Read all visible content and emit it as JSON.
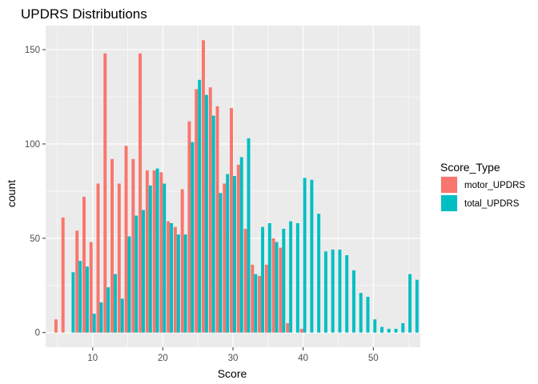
{
  "chart_data": {
    "type": "bar",
    "title": "UPDRS Distributions",
    "xlabel": "Score",
    "ylabel": "count",
    "xlim": [
      3.3,
      56.7
    ],
    "ylim": [
      -7.75,
      162.75
    ],
    "x_ticks": [
      10,
      20,
      30,
      40,
      50
    ],
    "y_ticks": [
      0,
      50,
      100,
      150
    ],
    "grid": true,
    "legend": {
      "title": "Score_Type",
      "position": "right"
    },
    "series": [
      {
        "name": "motor_UPDRS",
        "color": "#F8766D",
        "points": [
          [
            5,
            7
          ],
          [
            6,
            61
          ],
          [
            8,
            54
          ],
          [
            9,
            72
          ],
          [
            10,
            48
          ],
          [
            11,
            79
          ],
          [
            12,
            148
          ],
          [
            13,
            92
          ],
          [
            14,
            79
          ],
          [
            15,
            99
          ],
          [
            16,
            92
          ],
          [
            17,
            148
          ],
          [
            18,
            86
          ],
          [
            19,
            86
          ],
          [
            20,
            85
          ],
          [
            21,
            59
          ],
          [
            22,
            56
          ],
          [
            23,
            76
          ],
          [
            24,
            112
          ],
          [
            25,
            129
          ],
          [
            26,
            155
          ],
          [
            27,
            130
          ],
          [
            28,
            120
          ],
          [
            29,
            79
          ],
          [
            30,
            119
          ],
          [
            31,
            89
          ],
          [
            32,
            55
          ],
          [
            33,
            36
          ],
          [
            34,
            30
          ],
          [
            35,
            36
          ],
          [
            36,
            50
          ],
          [
            37,
            45
          ],
          [
            38,
            5
          ],
          [
            40,
            2
          ]
        ]
      },
      {
        "name": "total_UPDRS",
        "color": "#00BFC4",
        "points": [
          [
            7,
            32
          ],
          [
            8,
            38
          ],
          [
            9,
            35
          ],
          [
            10,
            10
          ],
          [
            11,
            16
          ],
          [
            12,
            24
          ],
          [
            13,
            31
          ],
          [
            14,
            18
          ],
          [
            15,
            51
          ],
          [
            16,
            62
          ],
          [
            17,
            65
          ],
          [
            18,
            78
          ],
          [
            19,
            87
          ],
          [
            20,
            79
          ],
          [
            21,
            58
          ],
          [
            22,
            52
          ],
          [
            23,
            52
          ],
          [
            24,
            101
          ],
          [
            25,
            134
          ],
          [
            26,
            126
          ],
          [
            27,
            115
          ],
          [
            28,
            74
          ],
          [
            29,
            84
          ],
          [
            30,
            83
          ],
          [
            31,
            93
          ],
          [
            32,
            103
          ],
          [
            33,
            31
          ],
          [
            34,
            56
          ],
          [
            35,
            58
          ],
          [
            36,
            48
          ],
          [
            37,
            55
          ],
          [
            38,
            59
          ],
          [
            39,
            58
          ],
          [
            40,
            82
          ],
          [
            41,
            81
          ],
          [
            42,
            63
          ],
          [
            43,
            43
          ],
          [
            44,
            44
          ],
          [
            45,
            44
          ],
          [
            46,
            41
          ],
          [
            47,
            33
          ],
          [
            48,
            21
          ],
          [
            49,
            19
          ],
          [
            50,
            7
          ],
          [
            51,
            3
          ],
          [
            52,
            2
          ],
          [
            53,
            2
          ],
          [
            54,
            5
          ],
          [
            55,
            31
          ],
          [
            56,
            28
          ]
        ]
      }
    ]
  }
}
